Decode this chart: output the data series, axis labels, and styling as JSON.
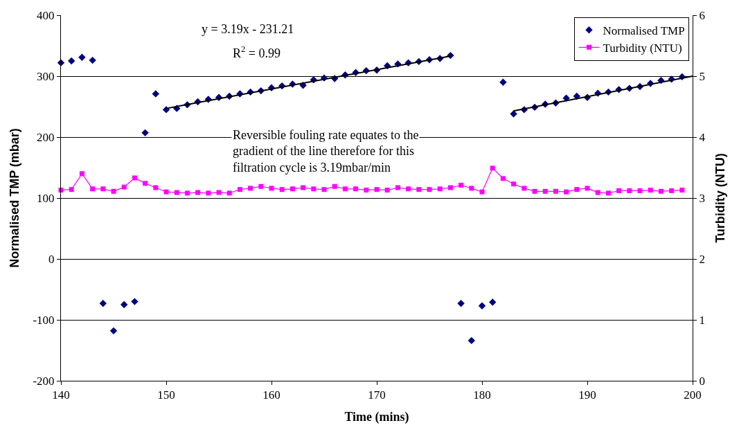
{
  "chart_data": {
    "type": "scatter",
    "xlabel": "Time (mins)",
    "ylabel": "Normalised TMP (mbar)",
    "y2label": "Turbidity (NTU)",
    "xlim": [
      140,
      200
    ],
    "xticks": [
      140,
      150,
      160,
      170,
      180,
      190,
      200
    ],
    "ylim": [
      -200,
      400
    ],
    "yticks": [
      -200,
      -100,
      0,
      100,
      200,
      300,
      400
    ],
    "y2lim": [
      0,
      6
    ],
    "y2ticks": [
      0,
      1,
      2,
      3,
      4,
      5,
      6
    ],
    "grid": "y",
    "legend": "top right",
    "annotations": [
      "y = 3.19x - 231.21",
      "R$^{2}$ = 0.99",
      "Reversible fouling rate equates to the\ngradient of the line therefore for this\nfiltration cycle is 3.19mbar/min"
    ],
    "series": [
      {
        "name": "Normalised TMP",
        "marker": "diamond",
        "color": "#000080",
        "x": [
          140,
          141,
          142,
          143,
          144,
          145,
          146,
          147,
          148,
          149,
          150,
          151,
          152,
          153,
          154,
          155,
          156,
          157,
          158,
          159,
          160,
          161,
          162,
          163,
          164,
          165,
          166,
          167,
          168,
          169,
          170,
          171,
          172,
          173,
          174,
          175,
          176,
          177,
          178,
          179,
          180,
          181,
          182,
          183,
          184,
          185,
          186,
          187,
          188,
          189,
          190,
          191,
          192,
          193,
          194,
          195,
          196,
          197,
          198,
          199
        ],
        "values": [
          322,
          325,
          331,
          326,
          -73,
          -118,
          -75,
          -70,
          207,
          271,
          245,
          247,
          253,
          258,
          262,
          265,
          267,
          271,
          274,
          276,
          281,
          284,
          287,
          285,
          294,
          297,
          296,
          302,
          306,
          309,
          310,
          317,
          320,
          322,
          324,
          327,
          329,
          334,
          -73,
          -134,
          -77,
          -71,
          290,
          238,
          245,
          249,
          254,
          256,
          264,
          267,
          265,
          272,
          274,
          278,
          280,
          283,
          288,
          293,
          295,
          299
        ]
      },
      {
        "name": "Turbidity (NTU)",
        "type": "line",
        "axis": "y2",
        "marker": "square",
        "color": "#ff00ff",
        "x": [
          140,
          141,
          142,
          143,
          144,
          145,
          146,
          147,
          148,
          149,
          150,
          151,
          152,
          153,
          154,
          155,
          156,
          157,
          158,
          159,
          160,
          161,
          162,
          163,
          164,
          165,
          166,
          167,
          168,
          169,
          170,
          171,
          172,
          173,
          174,
          175,
          176,
          177,
          178,
          179,
          180,
          181,
          182,
          183,
          184,
          185,
          186,
          187,
          188,
          189,
          190,
          191,
          192,
          193,
          194,
          195,
          196,
          197,
          198,
          199
        ],
        "values": [
          3.13,
          3.14,
          3.4,
          3.15,
          3.15,
          3.11,
          3.18,
          3.33,
          3.24,
          3.17,
          3.1,
          3.09,
          3.08,
          3.09,
          3.08,
          3.09,
          3.08,
          3.14,
          3.16,
          3.19,
          3.16,
          3.14,
          3.15,
          3.17,
          3.15,
          3.14,
          3.19,
          3.15,
          3.15,
          3.13,
          3.14,
          3.13,
          3.17,
          3.15,
          3.14,
          3.14,
          3.15,
          3.17,
          3.21,
          3.16,
          3.1,
          3.49,
          3.32,
          3.23,
          3.16,
          3.11,
          3.11,
          3.11,
          3.1,
          3.14,
          3.16,
          3.09,
          3.08,
          3.12,
          3.12,
          3.12,
          3.13,
          3.11,
          3.12,
          3.13
        ]
      },
      {
        "type": "line",
        "marker": "none",
        "color": "#000000",
        "x": [
          150,
          177
        ],
        "values": [
          247,
          333
        ]
      },
      {
        "type": "line",
        "marker": "none",
        "color": "#000000",
        "x": [
          183,
          200
        ],
        "values": [
          243,
          300
        ]
      }
    ]
  }
}
